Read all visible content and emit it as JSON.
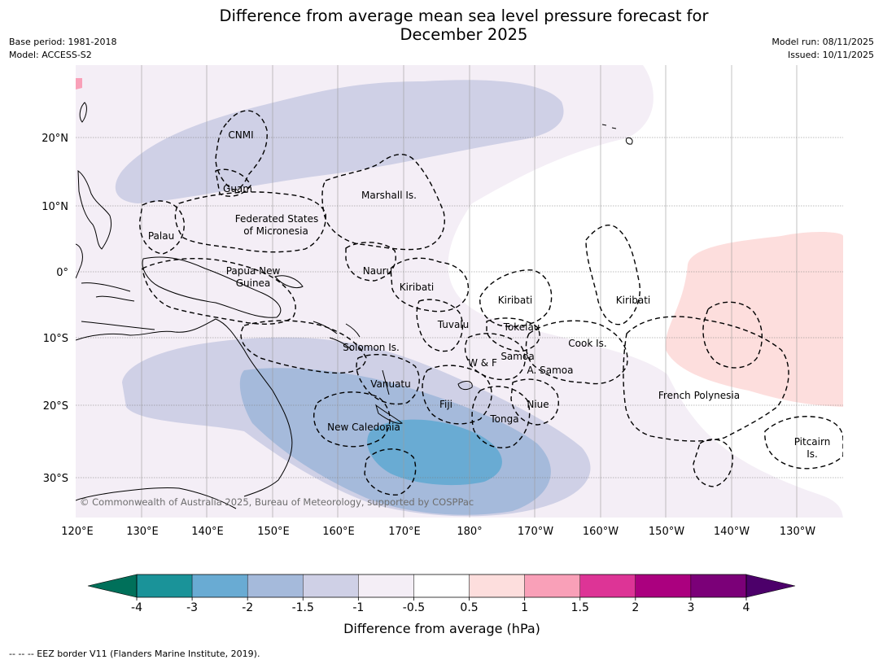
{
  "title_line1": "Difference from average mean sea level pressure forecast for",
  "title_line2": "December 2025",
  "meta_left": {
    "base_period": "Base period: 1981-2018",
    "model": "Model: ACCESS-S2"
  },
  "meta_right": {
    "model_run": "Model run: 08/11/2025",
    "issued": "Issued: 10/11/2025"
  },
  "copyright": "© Commonwealth of Australia 2025, Bureau of Meteorology, supported by COSPPac",
  "lat_labels": [
    "20°N",
    "10°N",
    "0°",
    "10°S",
    "20°S",
    "30°S"
  ],
  "lon_labels": [
    "120°E",
    "130°E",
    "140°E",
    "150°E",
    "160°E",
    "170°E",
    "180°",
    "170°W",
    "160°W",
    "150°W",
    "140°W",
    "130°W"
  ],
  "places": {
    "cnmi": "CNMI",
    "guam": "Guam",
    "marshall": "Marshall Is.",
    "fsm1": "Federated States",
    "fsm2": "of Micronesia",
    "palau": "Palau",
    "png1": "Papua New",
    "png2": "Guinea",
    "nauru": "Nauru",
    "kiribati_w": "Kiribati",
    "kiribati_c": "Kiribati",
    "kiribati_e": "Kiribati",
    "tuvalu": "Tuvalu",
    "tokelau": "Tokelau",
    "cook": "Cook Is.",
    "solomon": "Solomon Is.",
    "samoa": "Samoa",
    "wf": "W & F",
    "asamoa": "A. Samoa",
    "vanuatu": "Vanuatu",
    "fiji": "Fiji",
    "niue": "Niue",
    "tonga": "Tonga",
    "frenchpoly": "French Polynesia",
    "newcal": "New Caledonia",
    "pitcairn1": "Pitcairn",
    "pitcairn2": "Is."
  },
  "colorbar": {
    "label": "Difference from average (hPa)",
    "ticks": [
      "-4",
      "-3",
      "-2",
      "-1.5",
      "-1",
      "-0.5",
      "0.5",
      "1",
      "1.5",
      "2",
      "3",
      "4"
    ],
    "colors": [
      "#1a9399",
      "#69abd3",
      "#a5badb",
      "#cfd0e6",
      "#f4eef6",
      "#ffffff",
      "#fddedd",
      "#f9a0b8",
      "#dd3496",
      "#ab007f",
      "#7b0078"
    ],
    "under_color": "#00705a",
    "over_color": "#4c006a"
  },
  "eez_legend": "--  --  -- EEZ border V11 (Flanders Marine Institute, 2019)."
}
